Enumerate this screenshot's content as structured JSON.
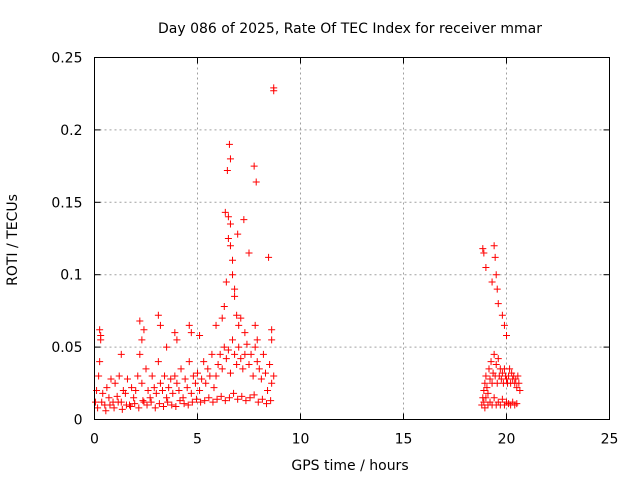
{
  "chart_data": {
    "type": "scatter",
    "title": "Day 086 of 2025, Rate Of TEC Index for receiver mmar",
    "xlabel": "GPS time / hours",
    "ylabel": "ROTI / TECUs",
    "xlim": [
      0,
      25
    ],
    "ylim": [
      0,
      0.25
    ],
    "xticks": [
      0,
      5,
      10,
      15,
      20,
      25
    ],
    "yticks": [
      0,
      0.05,
      0.1,
      0.15,
      0.2,
      0.25
    ],
    "xtick_labels": [
      "0",
      "5",
      "10",
      "15",
      "20",
      "25"
    ],
    "ytick_labels": [
      "0",
      "0.05",
      "0.1",
      "0.15",
      "0.2",
      "0.25"
    ],
    "grid": true,
    "marker": "+",
    "color": "#ff0000",
    "series": [
      {
        "x": [
          0.05,
          0.1,
          0.2,
          0.25,
          0.3,
          0.4,
          0.5,
          0.6,
          0.7,
          0.8,
          0.9,
          1.0,
          1.1,
          1.2,
          1.3,
          1.4,
          1.5,
          1.6,
          1.7,
          1.8,
          1.9,
          2.0,
          2.1,
          2.2,
          2.3,
          2.4,
          2.5,
          2.6,
          2.7,
          2.8,
          2.9,
          3.0,
          3.1,
          3.2,
          3.3,
          3.4,
          3.5,
          3.6,
          3.7,
          3.8,
          3.9,
          4.0,
          4.1,
          4.2,
          4.3,
          4.4,
          4.5,
          4.6,
          4.7,
          4.8,
          4.9,
          5.0,
          5.1,
          5.2,
          5.3,
          5.4,
          5.5,
          5.6,
          5.7,
          5.8,
          5.9,
          6.0,
          6.1,
          6.2,
          6.3,
          6.4,
          6.5,
          6.6,
          6.7,
          6.8,
          6.9,
          7.0,
          7.1,
          7.2,
          7.3,
          7.4,
          7.5,
          7.6,
          7.7,
          7.8,
          7.9,
          8.0,
          8.1,
          8.2,
          8.3,
          8.4,
          8.5,
          8.6,
          8.7,
          0.15,
          0.35,
          0.55,
          0.75,
          0.95,
          1.15,
          1.35,
          1.55,
          1.75,
          1.95,
          2.15,
          2.35,
          2.55,
          2.75,
          2.95,
          3.15,
          3.35,
          3.55,
          3.75,
          3.95,
          4.15,
          4.35,
          4.55,
          4.75,
          4.95,
          5.15,
          5.35,
          5.55,
          5.75,
          5.95,
          6.15,
          6.35,
          6.55,
          6.75,
          6.95,
          7.15,
          7.35,
          7.55,
          7.75,
          7.95,
          8.15,
          8.35,
          8.55,
          0.25,
          0.3,
          1.3,
          2.2,
          2.3,
          2.4,
          3.1,
          3.2,
          3.5,
          3.9,
          4.0,
          4.6,
          4.7,
          5.1,
          5.9,
          6.2,
          6.3,
          6.4,
          6.5,
          6.5,
          6.6,
          6.6,
          6.7,
          6.7,
          6.8,
          6.8,
          6.9,
          7.0,
          7.1,
          7.3,
          7.8,
          7.9,
          8.6,
          8.6,
          8.7,
          8.7,
          6.55,
          6.6,
          6.45,
          7.75,
          7.85,
          6.35,
          6.95,
          7.25,
          7.5,
          8.45,
          18.8,
          18.85,
          18.9,
          18.95,
          19.0,
          19.05,
          19.1,
          19.15,
          19.2,
          19.25,
          19.3,
          19.35,
          19.4,
          19.45,
          19.5,
          19.55,
          19.6,
          19.65,
          19.7,
          19.75,
          19.8,
          19.85,
          19.9,
          19.95,
          20.0,
          20.05,
          20.1,
          20.15,
          20.2,
          20.25,
          20.3,
          20.35,
          20.4,
          20.45,
          20.5,
          20.55,
          20.6,
          20.65,
          18.9,
          18.95,
          19.0,
          19.1,
          19.2,
          19.3,
          19.4,
          19.5,
          19.6,
          19.7,
          19.8,
          19.9,
          20.0,
          20.1,
          20.2,
          20.3,
          20.4,
          20.5,
          18.85,
          18.9,
          19.0,
          19.3,
          19.4,
          19.45,
          19.5,
          19.55,
          19.6,
          19.8,
          19.9,
          20.0
        ],
        "y": [
          0.012,
          0.02,
          0.03,
          0.04,
          0.055,
          0.018,
          0.01,
          0.022,
          0.015,
          0.028,
          0.012,
          0.025,
          0.016,
          0.03,
          0.012,
          0.02,
          0.018,
          0.028,
          0.01,
          0.022,
          0.015,
          0.02,
          0.03,
          0.045,
          0.025,
          0.012,
          0.035,
          0.02,
          0.015,
          0.03,
          0.022,
          0.018,
          0.04,
          0.025,
          0.02,
          0.03,
          0.015,
          0.022,
          0.028,
          0.018,
          0.03,
          0.025,
          0.02,
          0.035,
          0.015,
          0.028,
          0.022,
          0.04,
          0.018,
          0.03,
          0.025,
          0.032,
          0.02,
          0.028,
          0.04,
          0.025,
          0.035,
          0.03,
          0.045,
          0.022,
          0.03,
          0.038,
          0.045,
          0.035,
          0.05,
          0.042,
          0.048,
          0.032,
          0.055,
          0.045,
          0.038,
          0.05,
          0.042,
          0.035,
          0.045,
          0.052,
          0.038,
          0.045,
          0.03,
          0.05,
          0.04,
          0.035,
          0.028,
          0.045,
          0.032,
          0.02,
          0.038,
          0.025,
          0.03,
          0.008,
          0.012,
          0.006,
          0.01,
          0.008,
          0.012,
          0.007,
          0.01,
          0.009,
          0.011,
          0.008,
          0.013,
          0.01,
          0.012,
          0.008,
          0.011,
          0.009,
          0.012,
          0.01,
          0.009,
          0.013,
          0.011,
          0.01,
          0.012,
          0.014,
          0.012,
          0.013,
          0.015,
          0.012,
          0.014,
          0.016,
          0.013,
          0.015,
          0.018,
          0.014,
          0.016,
          0.013,
          0.015,
          0.017,
          0.012,
          0.014,
          0.011,
          0.013,
          0.062,
          0.058,
          0.045,
          0.068,
          0.055,
          0.062,
          0.072,
          0.065,
          0.05,
          0.06,
          0.055,
          0.065,
          0.06,
          0.058,
          0.065,
          0.07,
          0.078,
          0.095,
          0.125,
          0.14,
          0.135,
          0.12,
          0.11,
          0.1,
          0.09,
          0.085,
          0.072,
          0.065,
          0.07,
          0.06,
          0.065,
          0.055,
          0.062,
          0.055,
          0.229,
          0.227,
          0.19,
          0.18,
          0.172,
          0.175,
          0.164,
          0.143,
          0.128,
          0.138,
          0.115,
          0.112,
          0.01,
          0.015,
          0.02,
          0.025,
          0.03,
          0.022,
          0.018,
          0.035,
          0.028,
          0.04,
          0.025,
          0.032,
          0.045,
          0.03,
          0.038,
          0.025,
          0.042,
          0.03,
          0.035,
          0.028,
          0.032,
          0.025,
          0.035,
          0.03,
          0.028,
          0.025,
          0.03,
          0.035,
          0.025,
          0.032,
          0.028,
          0.03,
          0.025,
          0.028,
          0.022,
          0.03,
          0.025,
          0.02,
          0.012,
          0.008,
          0.015,
          0.01,
          0.012,
          0.01,
          0.015,
          0.01,
          0.012,
          0.01,
          0.014,
          0.01,
          0.012,
          0.011,
          0.01,
          0.012,
          0.01,
          0.011,
          0.118,
          0.115,
          0.105,
          0.095,
          0.12,
          0.112,
          0.1,
          0.09,
          0.08,
          0.072,
          0.065,
          0.058
        ]
      }
    ]
  }
}
